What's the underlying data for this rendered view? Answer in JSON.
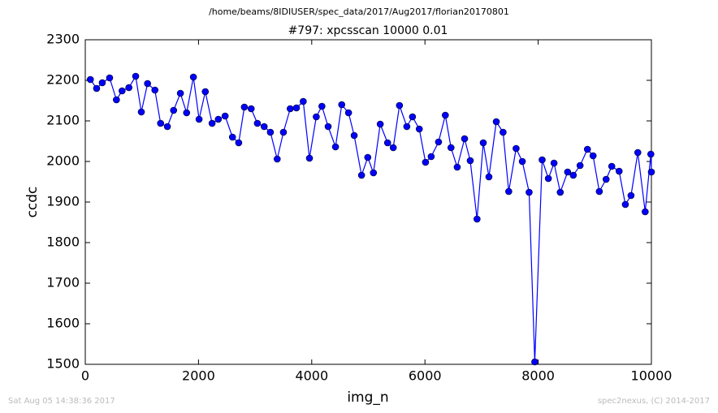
{
  "chart_data": {
    "type": "line",
    "suptitle": "/home/beams/8IDIUSER/spec_data/2017/Aug2017/florian20170801",
    "title": "#797: xpcsscan 10000 0.01",
    "xlabel": "img_n",
    "ylabel": "ccdc",
    "footer_left": "Sat Aug 05 14:38:36 2017",
    "footer_right": "spec2nexus, (C) 2014-2017",
    "xlim": [
      0,
      10000
    ],
    "xticks": [
      0,
      2000,
      4000,
      6000,
      8000,
      10000
    ],
    "ylim": [
      1500,
      2300
    ],
    "yticks": [
      1500,
      1600,
      1700,
      1800,
      1900,
      2000,
      2100,
      2200,
      2300
    ],
    "series": [
      {
        "color": "#0000ff",
        "x": [
          90,
          200,
          300,
          430,
          550,
          650,
          770,
          890,
          990,
          1100,
          1230,
          1330,
          1450,
          1560,
          1680,
          1790,
          1910,
          2010,
          2120,
          2240,
          2350,
          2470,
          2600,
          2710,
          2810,
          2930,
          3040,
          3160,
          3270,
          3390,
          3500,
          3620,
          3730,
          3850,
          3960,
          4080,
          4180,
          4290,
          4420,
          4530,
          4650,
          4750,
          4880,
          4990,
          5090,
          5210,
          5340,
          5440,
          5550,
          5680,
          5780,
          5900,
          6010,
          6110,
          6240,
          6360,
          6460,
          6570,
          6700,
          6800,
          6920,
          7030,
          7130,
          7260,
          7380,
          7480,
          7610,
          7720,
          7840,
          7940,
          8070,
          8180,
          8280,
          8390,
          8520,
          8620,
          8740,
          8870,
          8970,
          9080,
          9200,
          9300,
          9430,
          9540,
          9640,
          9760,
          9890,
          9990,
          10000
        ],
        "values": [
          2202,
          2180,
          2194,
          2206,
          2152,
          2174,
          2182,
          2210,
          2122,
          2192,
          2176,
          2094,
          2086,
          2126,
          2168,
          2120,
          2208,
          2104,
          2172,
          2094,
          2104,
          2112,
          2060,
          2046,
          2134,
          2130,
          2094,
          2086,
          2072,
          2006,
          2072,
          2130,
          2132,
          2148,
          2008,
          2110,
          2136,
          2086,
          2036,
          2140,
          2120,
          2064,
          1966,
          2010,
          1972,
          2092,
          2046,
          2034,
          2138,
          2086,
          2110,
          2080,
          1998,
          2012,
          2048,
          2114,
          2034,
          1986,
          2056,
          2002,
          1858,
          2046,
          1962,
          2098,
          2072,
          1926,
          2032,
          2000,
          1924,
          1506,
          2004,
          1958,
          1996,
          1924,
          1974,
          1966,
          1990,
          2030,
          2014,
          1926,
          1956,
          1988,
          1976,
          1894,
          1916,
          2022,
          1876,
          2018,
          1974
        ]
      }
    ]
  }
}
